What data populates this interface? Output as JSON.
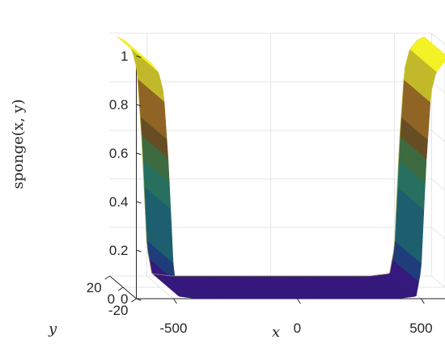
{
  "chart_data": {
    "type": "surface",
    "title": "",
    "xlabel": "x",
    "ylabel": "y",
    "zlabel": "sponge(x, y)",
    "xlim": [
      -650,
      650
    ],
    "ylim": [
      -20,
      20
    ],
    "zlim": [
      0,
      1
    ],
    "x_ticks": [
      -500,
      0,
      500
    ],
    "y_ticks": [
      -20,
      0,
      20
    ],
    "z_ticks": [
      0,
      0.2,
      0.4,
      0.6,
      0.8,
      1
    ],
    "x_tick_labels": [
      "-500",
      "0",
      "500"
    ],
    "y_tick_labels": [
      "-20",
      "0",
      "20"
    ],
    "z_tick_labels": [
      "0",
      "0.2",
      "0.4",
      "0.6",
      "0.8",
      "1"
    ],
    "grid": true,
    "colormap": "parula-like",
    "colors": [
      "#35197c",
      "#1f3d7a",
      "#1d5f6e",
      "#27705f",
      "#3d6a3e",
      "#674d24",
      "#8f6424",
      "#c2b92a",
      "#f2f227"
    ],
    "profile": {
      "x": [
        -620,
        -590,
        -560,
        -540,
        -520,
        -500,
        -480,
        -400,
        0,
        400,
        480,
        500,
        520,
        540,
        560,
        590,
        620
      ],
      "z": [
        0.985,
        0.97,
        0.93,
        0.85,
        0.55,
        0.12,
        0.01,
        0,
        0,
        0,
        0.01,
        0.12,
        0.55,
        0.85,
        0.93,
        0.97,
        0.985
      ]
    }
  }
}
